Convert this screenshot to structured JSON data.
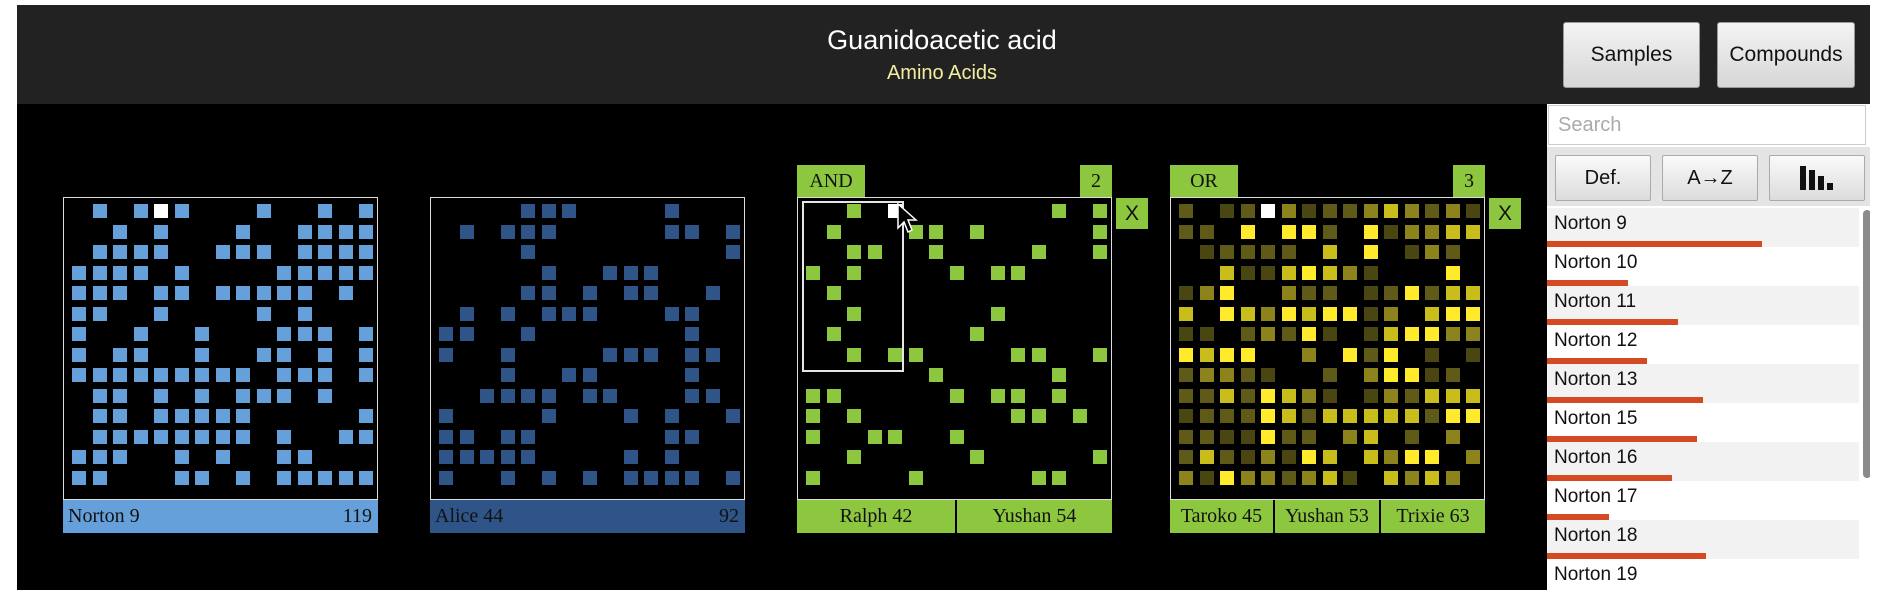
{
  "header": {
    "title": "Guanidoacetic acid",
    "subtitle": "Amino Acids"
  },
  "nav": {
    "samples_label": "Samples",
    "compounds_label": "Compounds"
  },
  "search": {
    "placeholder": "Search"
  },
  "sort": {
    "def_label": "Def.",
    "az_label": "A→Z",
    "bars_icon": "bar-chart-sort-icon"
  },
  "sample_list": [
    {
      "label": "Norton 9",
      "level": 0.69
    },
    {
      "label": "Norton 10",
      "level": 0.26
    },
    {
      "label": "Norton 11",
      "level": 0.42
    },
    {
      "label": "Norton 12",
      "level": 0.32
    },
    {
      "label": "Norton 13",
      "level": 0.5
    },
    {
      "label": "Norton 15",
      "level": 0.48
    },
    {
      "label": "Norton 16",
      "level": 0.4
    },
    {
      "label": "Norton 17",
      "level": 0.2
    },
    {
      "label": "Norton 18",
      "level": 0.51
    },
    {
      "label": "Norton 19",
      "level": 0.0
    }
  ],
  "panels": [
    {
      "id": "norton9",
      "color": "#66a0db",
      "footer": [
        {
          "label": "Norton 9",
          "count": "119"
        }
      ]
    },
    {
      "id": "alice44",
      "color": "#2f5488",
      "footer": [
        {
          "label": "Alice 44",
          "count": "92"
        }
      ]
    },
    {
      "id": "and",
      "color": "#8dc63f",
      "operator": "AND",
      "count": "2",
      "close_label": "X",
      "footer": [
        {
          "label": "Ralph 42"
        },
        {
          "label": "Yushan 54"
        }
      ]
    },
    {
      "id": "or",
      "color": "#b4a820",
      "operator": "OR",
      "count": "3",
      "close_label": "X",
      "footer": [
        {
          "label": "Taroko 45"
        },
        {
          "label": "Yushan 53"
        },
        {
          "label": "Trixie 63"
        }
      ]
    }
  ]
}
